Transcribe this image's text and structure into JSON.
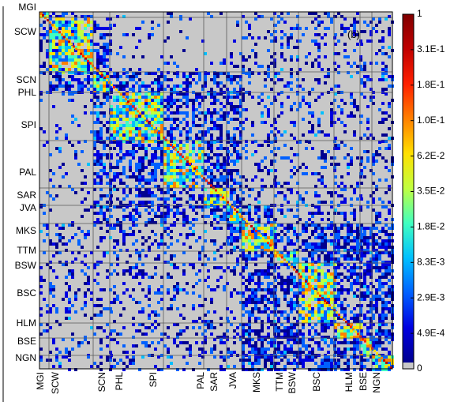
{
  "chart_data": {
    "type": "heatmap",
    "panel_label": "(b)",
    "row_labels": [
      "MGI",
      "SCW",
      "SCN",
      "PHL",
      "SPI",
      "PAL",
      "SAR",
      "JVA",
      "MKS",
      "TTM",
      "BSW",
      "BSC",
      "HLM",
      "BSE",
      "NGN"
    ],
    "col_labels": [
      "MGI",
      "SCW",
      "SCN",
      "PHL",
      "SPI",
      "PAL",
      "SAR",
      "JVA",
      "MKS",
      "TTM",
      "BSW",
      "BSC",
      "HLM",
      "BSE",
      "NGN"
    ],
    "colorbar": {
      "tick_labels": [
        "1",
        "3.1E-1",
        "1.8E-1",
        "1.0E-1",
        "6.2E-2",
        "3.5E-2",
        "1.8E-2",
        "8.3E-3",
        "2.9E-3",
        "4.9E-4",
        "0"
      ],
      "colors": [
        "#800000",
        "#c00000",
        "#ff2000",
        "#ff8000",
        "#ffe000",
        "#c0ff40",
        "#40ffc0",
        "#00c0ff",
        "#0060ff",
        "#0000e0",
        "#00008f"
      ],
      "zero_color": "#c8c8c8"
    },
    "grid": true
  }
}
